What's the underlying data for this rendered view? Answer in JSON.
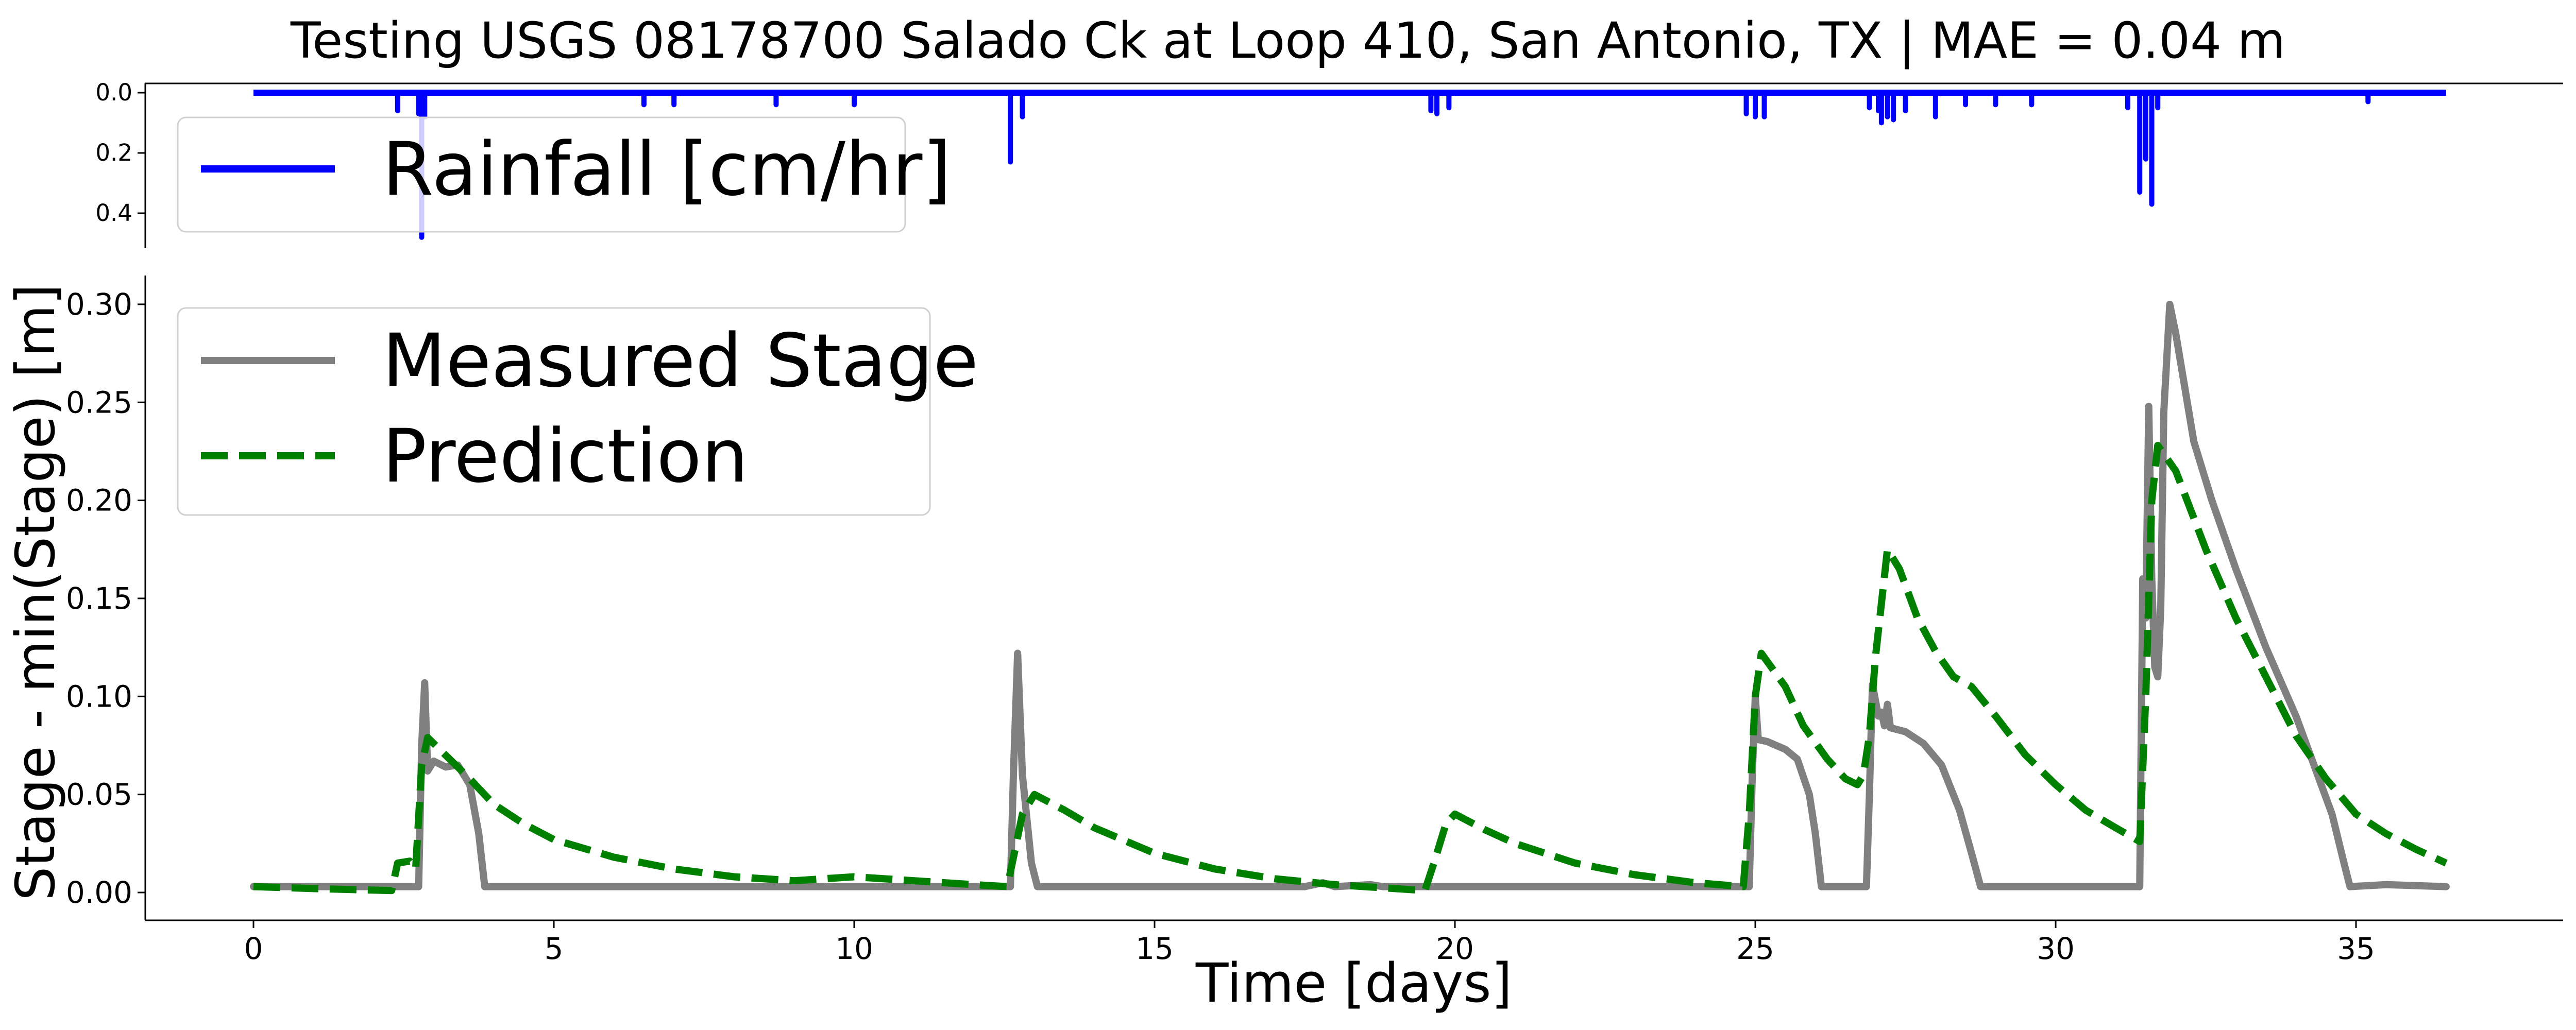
{
  "title": "Testing USGS 08178700 Salado Ck at Loop 410, San Antonio, TX | MAE = 0.04 m",
  "colors": {
    "rain": "#0000ff",
    "measured": "#808080",
    "prediction": "#008000"
  },
  "chart_data": [
    {
      "type": "line",
      "panel": "rainfall",
      "y_inverted": true,
      "xlim": [
        0,
        36.5
      ],
      "ylim": [
        0.5,
        0
      ],
      "yticks": [
        "0.0",
        "0.2",
        "0.4"
      ],
      "legend": {
        "placement": "top-left",
        "entries": [
          "Rainfall [cm/hr]"
        ]
      },
      "series": [
        {
          "name": "Rainfall [cm/hr]",
          "style": "solid",
          "spikes": [
            [
              2.4,
              0.06
            ],
            [
              2.75,
              0.07
            ],
            [
              2.8,
              0.48
            ],
            [
              2.85,
              0.08
            ],
            [
              6.5,
              0.04
            ],
            [
              7.0,
              0.04
            ],
            [
              8.7,
              0.04
            ],
            [
              10.0,
              0.04
            ],
            [
              12.6,
              0.23
            ],
            [
              12.8,
              0.08
            ],
            [
              19.6,
              0.06
            ],
            [
              19.7,
              0.07
            ],
            [
              19.9,
              0.05
            ],
            [
              24.85,
              0.07
            ],
            [
              25.0,
              0.08
            ],
            [
              25.15,
              0.08
            ],
            [
              26.9,
              0.05
            ],
            [
              27.05,
              0.06
            ],
            [
              27.1,
              0.1
            ],
            [
              27.2,
              0.08
            ],
            [
              27.3,
              0.09
            ],
            [
              27.5,
              0.06
            ],
            [
              28.0,
              0.08
            ],
            [
              28.5,
              0.04
            ],
            [
              29.0,
              0.04
            ],
            [
              29.6,
              0.04
            ],
            [
              31.2,
              0.05
            ],
            [
              31.4,
              0.33
            ],
            [
              31.5,
              0.22
            ],
            [
              31.6,
              0.37
            ],
            [
              31.7,
              0.05
            ],
            [
              35.2,
              0.03
            ]
          ]
        }
      ]
    },
    {
      "type": "line",
      "panel": "stage",
      "xlabel": "Time [days]",
      "ylabel": "Stage - min(Stage) [m]",
      "xlim": [
        -1.8,
        38.5
      ],
      "ylim": [
        -0.013,
        0.316
      ],
      "xticks": [
        0,
        5,
        10,
        15,
        20,
        25,
        30,
        35
      ],
      "yticks": [
        "0.00",
        "0.05",
        "0.10",
        "0.15",
        "0.20",
        "0.25",
        "0.30"
      ],
      "legend": {
        "placement": "top-left",
        "entries": [
          "Measured Stage",
          "Prediction"
        ]
      },
      "series": [
        {
          "name": "Measured Stage",
          "style": "solid",
          "points": [
            [
              0,
              0.003
            ],
            [
              2.75,
              0.003
            ],
            [
              2.8,
              0.075
            ],
            [
              2.85,
              0.107
            ],
            [
              2.9,
              0.062
            ],
            [
              3.0,
              0.067
            ],
            [
              3.2,
              0.064
            ],
            [
              3.4,
              0.065
            ],
            [
              3.6,
              0.055
            ],
            [
              3.75,
              0.03
            ],
            [
              3.85,
              0.003
            ],
            [
              12.6,
              0.003
            ],
            [
              12.65,
              0.06
            ],
            [
              12.72,
              0.122
            ],
            [
              12.8,
              0.06
            ],
            [
              12.95,
              0.015
            ],
            [
              13.05,
              0.003
            ],
            [
              17.5,
              0.003
            ],
            [
              17.8,
              0.005
            ],
            [
              18.0,
              0.003
            ],
            [
              18.6,
              0.004
            ],
            [
              18.8,
              0.003
            ],
            [
              24.9,
              0.003
            ],
            [
              24.95,
              0.06
            ],
            [
              25.0,
              0.1
            ],
            [
              25.05,
              0.078
            ],
            [
              25.2,
              0.077
            ],
            [
              25.5,
              0.073
            ],
            [
              25.7,
              0.068
            ],
            [
              25.9,
              0.05
            ],
            [
              26.0,
              0.03
            ],
            [
              26.1,
              0.003
            ],
            [
              26.85,
              0.003
            ],
            [
              26.9,
              0.05
            ],
            [
              26.95,
              0.106
            ],
            [
              27.05,
              0.09
            ],
            [
              27.1,
              0.092
            ],
            [
              27.15,
              0.085
            ],
            [
              27.2,
              0.096
            ],
            [
              27.25,
              0.084
            ],
            [
              27.5,
              0.082
            ],
            [
              27.8,
              0.076
            ],
            [
              28.1,
              0.065
            ],
            [
              28.4,
              0.042
            ],
            [
              28.6,
              0.02
            ],
            [
              28.75,
              0.003
            ],
            [
              31.4,
              0.003
            ],
            [
              31.45,
              0.16
            ],
            [
              31.5,
              0.14
            ],
            [
              31.55,
              0.248
            ],
            [
              31.6,
              0.16
            ],
            [
              31.65,
              0.115
            ],
            [
              31.7,
              0.11
            ],
            [
              31.75,
              0.145
            ],
            [
              31.8,
              0.245
            ],
            [
              31.9,
              0.3
            ],
            [
              32.0,
              0.285
            ],
            [
              32.3,
              0.23
            ],
            [
              32.6,
              0.2
            ],
            [
              33.0,
              0.165
            ],
            [
              33.5,
              0.125
            ],
            [
              34.0,
              0.09
            ],
            [
              34.3,
              0.065
            ],
            [
              34.6,
              0.04
            ],
            [
              34.8,
              0.015
            ],
            [
              34.9,
              0.003
            ],
            [
              35.5,
              0.004
            ],
            [
              36.5,
              0.003
            ]
          ]
        },
        {
          "name": "Prediction",
          "style": "dashed",
          "points": [
            [
              0,
              0.003
            ],
            [
              1.0,
              0.002
            ],
            [
              2.3,
              0.001
            ],
            [
              2.4,
              0.015
            ],
            [
              2.6,
              0.016
            ],
            [
              2.7,
              0.012
            ],
            [
              2.8,
              0.065
            ],
            [
              2.9,
              0.079
            ],
            [
              3.2,
              0.07
            ],
            [
              3.6,
              0.058
            ],
            [
              4.0,
              0.045
            ],
            [
              4.5,
              0.035
            ],
            [
              5.0,
              0.027
            ],
            [
              6.0,
              0.018
            ],
            [
              7.0,
              0.012
            ],
            [
              8.0,
              0.008
            ],
            [
              9.0,
              0.006
            ],
            [
              10.0,
              0.008
            ],
            [
              11.0,
              0.006
            ],
            [
              12.0,
              0.004
            ],
            [
              12.55,
              0.003
            ],
            [
              12.8,
              0.04
            ],
            [
              13.0,
              0.05
            ],
            [
              13.5,
              0.042
            ],
            [
              14.0,
              0.033
            ],
            [
              15.0,
              0.02
            ],
            [
              16.0,
              0.012
            ],
            [
              17.0,
              0.007
            ],
            [
              18.0,
              0.004
            ],
            [
              19.5,
              0.001
            ],
            [
              19.65,
              0.015
            ],
            [
              19.85,
              0.035
            ],
            [
              20.0,
              0.04
            ],
            [
              20.5,
              0.032
            ],
            [
              21.0,
              0.025
            ],
            [
              22.0,
              0.015
            ],
            [
              23.0,
              0.009
            ],
            [
              24.0,
              0.005
            ],
            [
              24.8,
              0.003
            ],
            [
              24.9,
              0.04
            ],
            [
              25.0,
              0.1
            ],
            [
              25.1,
              0.122
            ],
            [
              25.5,
              0.105
            ],
            [
              25.8,
              0.085
            ],
            [
              26.2,
              0.068
            ],
            [
              26.5,
              0.058
            ],
            [
              26.7,
              0.055
            ],
            [
              26.8,
              0.06
            ],
            [
              26.9,
              0.08
            ],
            [
              27.0,
              0.12
            ],
            [
              27.2,
              0.175
            ],
            [
              27.4,
              0.165
            ],
            [
              27.7,
              0.14
            ],
            [
              28.0,
              0.123
            ],
            [
              28.3,
              0.11
            ],
            [
              28.6,
              0.105
            ],
            [
              29.0,
              0.09
            ],
            [
              29.5,
              0.07
            ],
            [
              30.0,
              0.055
            ],
            [
              30.5,
              0.042
            ],
            [
              31.0,
              0.033
            ],
            [
              31.4,
              0.026
            ],
            [
              31.5,
              0.1
            ],
            [
              31.6,
              0.2
            ],
            [
              31.7,
              0.228
            ],
            [
              32.0,
              0.215
            ],
            [
              32.5,
              0.175
            ],
            [
              33.0,
              0.14
            ],
            [
              33.5,
              0.11
            ],
            [
              34.0,
              0.08
            ],
            [
              34.5,
              0.058
            ],
            [
              35.0,
              0.04
            ],
            [
              35.5,
              0.03
            ],
            [
              36.0,
              0.022
            ],
            [
              36.5,
              0.015
            ]
          ]
        }
      ]
    }
  ]
}
